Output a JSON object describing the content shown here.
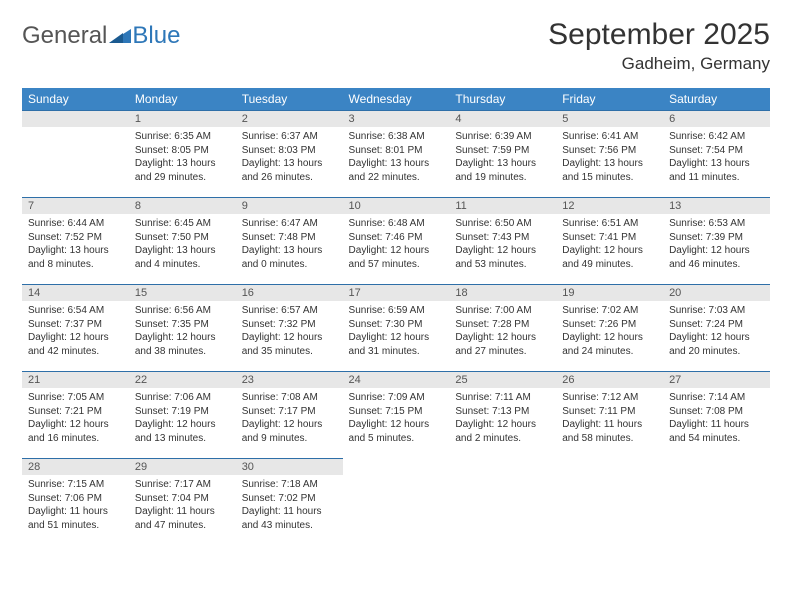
{
  "logo": {
    "text1": "General",
    "text2": "Blue"
  },
  "title": "September 2025",
  "location": "Gadheim, Germany",
  "colors": {
    "header_bg": "#3b84c4",
    "header_text": "#ffffff",
    "daynum_bg": "#e7e7e7",
    "border": "#2e6fa8",
    "body_bg": "#ffffff",
    "text": "#333333"
  },
  "weekdays": [
    "Sunday",
    "Monday",
    "Tuesday",
    "Wednesday",
    "Thursday",
    "Friday",
    "Saturday"
  ],
  "layout": {
    "columns": 7,
    "rows": 5,
    "start_offset": 1,
    "days_in_month": 30
  },
  "days": {
    "1": {
      "sunrise": "Sunrise: 6:35 AM",
      "sunset": "Sunset: 8:05 PM",
      "daylight1": "Daylight: 13 hours",
      "daylight2": "and 29 minutes."
    },
    "2": {
      "sunrise": "Sunrise: 6:37 AM",
      "sunset": "Sunset: 8:03 PM",
      "daylight1": "Daylight: 13 hours",
      "daylight2": "and 26 minutes."
    },
    "3": {
      "sunrise": "Sunrise: 6:38 AM",
      "sunset": "Sunset: 8:01 PM",
      "daylight1": "Daylight: 13 hours",
      "daylight2": "and 22 minutes."
    },
    "4": {
      "sunrise": "Sunrise: 6:39 AM",
      "sunset": "Sunset: 7:59 PM",
      "daylight1": "Daylight: 13 hours",
      "daylight2": "and 19 minutes."
    },
    "5": {
      "sunrise": "Sunrise: 6:41 AM",
      "sunset": "Sunset: 7:56 PM",
      "daylight1": "Daylight: 13 hours",
      "daylight2": "and 15 minutes."
    },
    "6": {
      "sunrise": "Sunrise: 6:42 AM",
      "sunset": "Sunset: 7:54 PM",
      "daylight1": "Daylight: 13 hours",
      "daylight2": "and 11 minutes."
    },
    "7": {
      "sunrise": "Sunrise: 6:44 AM",
      "sunset": "Sunset: 7:52 PM",
      "daylight1": "Daylight: 13 hours",
      "daylight2": "and 8 minutes."
    },
    "8": {
      "sunrise": "Sunrise: 6:45 AM",
      "sunset": "Sunset: 7:50 PM",
      "daylight1": "Daylight: 13 hours",
      "daylight2": "and 4 minutes."
    },
    "9": {
      "sunrise": "Sunrise: 6:47 AM",
      "sunset": "Sunset: 7:48 PM",
      "daylight1": "Daylight: 13 hours",
      "daylight2": "and 0 minutes."
    },
    "10": {
      "sunrise": "Sunrise: 6:48 AM",
      "sunset": "Sunset: 7:46 PM",
      "daylight1": "Daylight: 12 hours",
      "daylight2": "and 57 minutes."
    },
    "11": {
      "sunrise": "Sunrise: 6:50 AM",
      "sunset": "Sunset: 7:43 PM",
      "daylight1": "Daylight: 12 hours",
      "daylight2": "and 53 minutes."
    },
    "12": {
      "sunrise": "Sunrise: 6:51 AM",
      "sunset": "Sunset: 7:41 PM",
      "daylight1": "Daylight: 12 hours",
      "daylight2": "and 49 minutes."
    },
    "13": {
      "sunrise": "Sunrise: 6:53 AM",
      "sunset": "Sunset: 7:39 PM",
      "daylight1": "Daylight: 12 hours",
      "daylight2": "and 46 minutes."
    },
    "14": {
      "sunrise": "Sunrise: 6:54 AM",
      "sunset": "Sunset: 7:37 PM",
      "daylight1": "Daylight: 12 hours",
      "daylight2": "and 42 minutes."
    },
    "15": {
      "sunrise": "Sunrise: 6:56 AM",
      "sunset": "Sunset: 7:35 PM",
      "daylight1": "Daylight: 12 hours",
      "daylight2": "and 38 minutes."
    },
    "16": {
      "sunrise": "Sunrise: 6:57 AM",
      "sunset": "Sunset: 7:32 PM",
      "daylight1": "Daylight: 12 hours",
      "daylight2": "and 35 minutes."
    },
    "17": {
      "sunrise": "Sunrise: 6:59 AM",
      "sunset": "Sunset: 7:30 PM",
      "daylight1": "Daylight: 12 hours",
      "daylight2": "and 31 minutes."
    },
    "18": {
      "sunrise": "Sunrise: 7:00 AM",
      "sunset": "Sunset: 7:28 PM",
      "daylight1": "Daylight: 12 hours",
      "daylight2": "and 27 minutes."
    },
    "19": {
      "sunrise": "Sunrise: 7:02 AM",
      "sunset": "Sunset: 7:26 PM",
      "daylight1": "Daylight: 12 hours",
      "daylight2": "and 24 minutes."
    },
    "20": {
      "sunrise": "Sunrise: 7:03 AM",
      "sunset": "Sunset: 7:24 PM",
      "daylight1": "Daylight: 12 hours",
      "daylight2": "and 20 minutes."
    },
    "21": {
      "sunrise": "Sunrise: 7:05 AM",
      "sunset": "Sunset: 7:21 PM",
      "daylight1": "Daylight: 12 hours",
      "daylight2": "and 16 minutes."
    },
    "22": {
      "sunrise": "Sunrise: 7:06 AM",
      "sunset": "Sunset: 7:19 PM",
      "daylight1": "Daylight: 12 hours",
      "daylight2": "and 13 minutes."
    },
    "23": {
      "sunrise": "Sunrise: 7:08 AM",
      "sunset": "Sunset: 7:17 PM",
      "daylight1": "Daylight: 12 hours",
      "daylight2": "and 9 minutes."
    },
    "24": {
      "sunrise": "Sunrise: 7:09 AM",
      "sunset": "Sunset: 7:15 PM",
      "daylight1": "Daylight: 12 hours",
      "daylight2": "and 5 minutes."
    },
    "25": {
      "sunrise": "Sunrise: 7:11 AM",
      "sunset": "Sunset: 7:13 PM",
      "daylight1": "Daylight: 12 hours",
      "daylight2": "and 2 minutes."
    },
    "26": {
      "sunrise": "Sunrise: 7:12 AM",
      "sunset": "Sunset: 7:11 PM",
      "daylight1": "Daylight: 11 hours",
      "daylight2": "and 58 minutes."
    },
    "27": {
      "sunrise": "Sunrise: 7:14 AM",
      "sunset": "Sunset: 7:08 PM",
      "daylight1": "Daylight: 11 hours",
      "daylight2": "and 54 minutes."
    },
    "28": {
      "sunrise": "Sunrise: 7:15 AM",
      "sunset": "Sunset: 7:06 PM",
      "daylight1": "Daylight: 11 hours",
      "daylight2": "and 51 minutes."
    },
    "29": {
      "sunrise": "Sunrise: 7:17 AM",
      "sunset": "Sunset: 7:04 PM",
      "daylight1": "Daylight: 11 hours",
      "daylight2": "and 47 minutes."
    },
    "30": {
      "sunrise": "Sunrise: 7:18 AM",
      "sunset": "Sunset: 7:02 PM",
      "daylight1": "Daylight: 11 hours",
      "daylight2": "and 43 minutes."
    }
  }
}
